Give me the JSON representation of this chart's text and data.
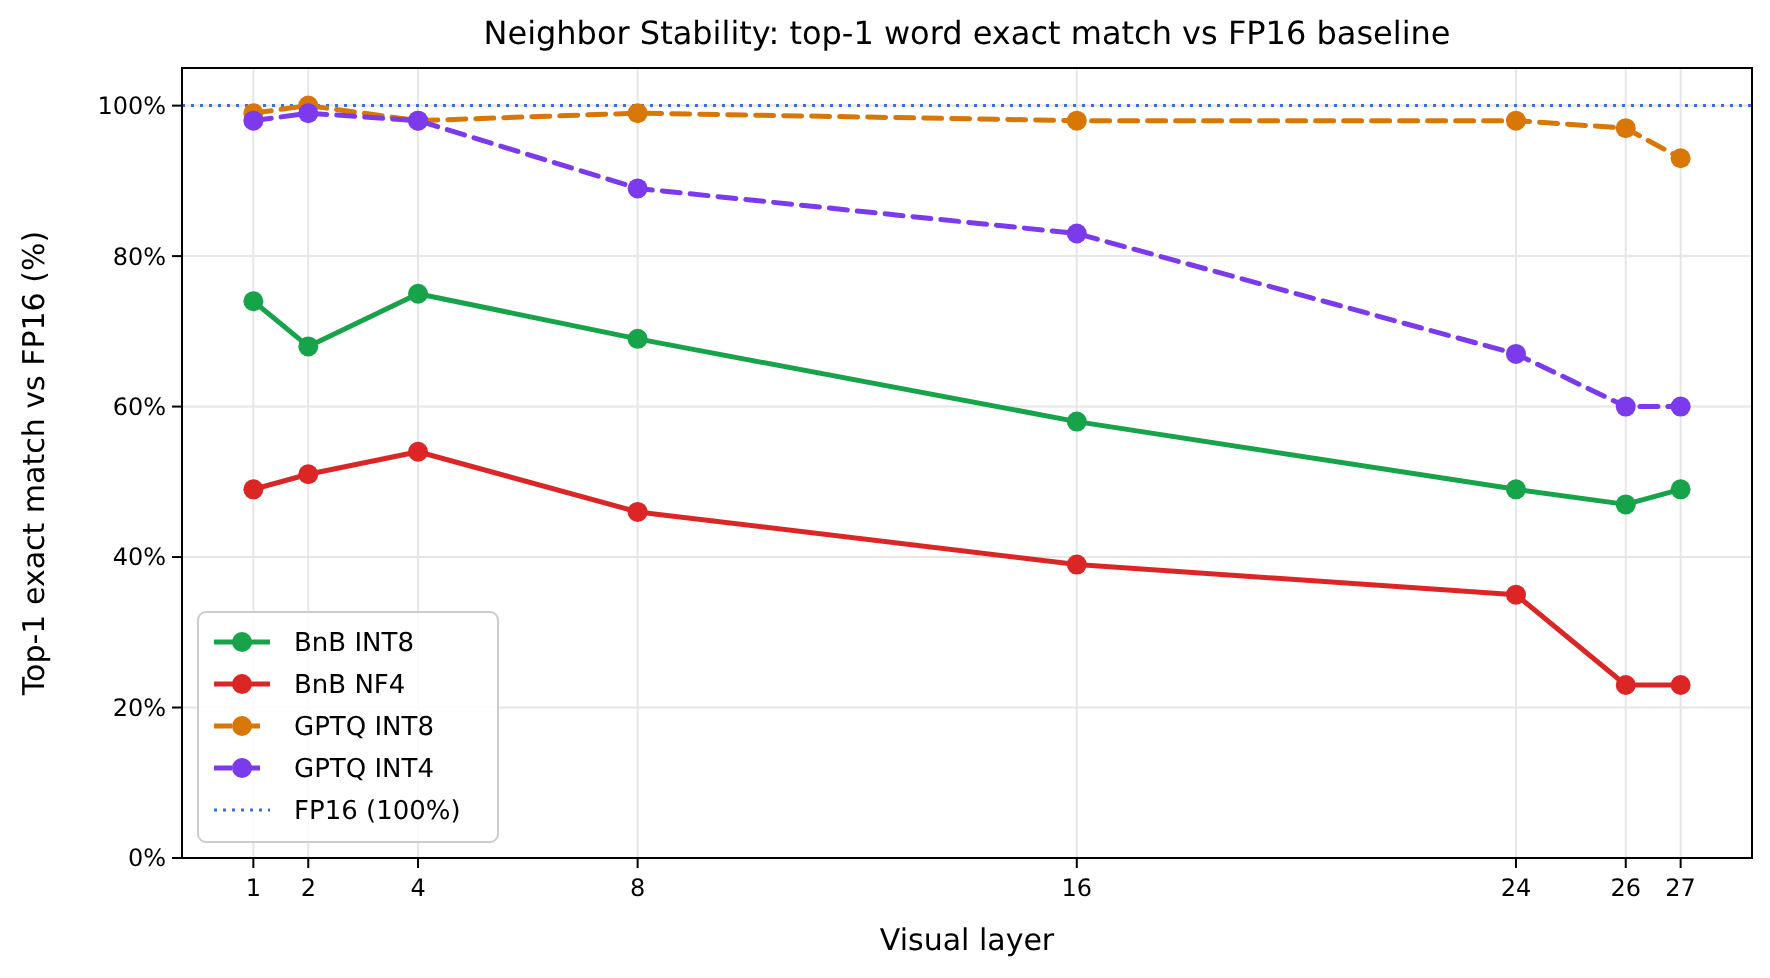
{
  "chart_data": {
    "type": "line",
    "title": "Neighbor Stability: top-1 word exact match vs FP16 baseline",
    "xlabel": "Visual layer",
    "ylabel": "Top-1 exact match vs FP16 (%)",
    "x": [
      1,
      2,
      4,
      8,
      16,
      24,
      26,
      27
    ],
    "series": [
      {
        "name": "BnB INT8",
        "color": "#16a34a",
        "line_style": "solid",
        "values": [
          74,
          68,
          75,
          69,
          58,
          49,
          47,
          49
        ]
      },
      {
        "name": "BnB NF4",
        "color": "#dc2626",
        "line_style": "solid",
        "values": [
          49,
          51,
          54,
          46,
          39,
          35,
          23,
          23
        ]
      },
      {
        "name": "GPTQ INT8",
        "color": "#d97706",
        "line_style": "dashed",
        "values": [
          99,
          100,
          98,
          99,
          98,
          98,
          97,
          93
        ]
      },
      {
        "name": "GPTQ INT4",
        "color": "#7c3aed",
        "line_style": "dashed",
        "values": [
          98,
          99,
          98,
          89,
          83,
          67,
          60,
          60
        ]
      }
    ],
    "ref_lines": [
      {
        "axis": "y",
        "value": 100,
        "label": "FP16 (100%)",
        "color": "#3b6fe0",
        "line_style": "dotted"
      }
    ],
    "xlim": [
      -0.3,
      28.3
    ],
    "xticks": [
      1,
      2,
      4,
      8,
      16,
      24,
      26,
      27
    ],
    "ylim": [
      0,
      105
    ],
    "yticks": [
      {
        "value": 0,
        "label": "0%"
      },
      {
        "value": 20,
        "label": "20%"
      },
      {
        "value": 40,
        "label": "40%"
      },
      {
        "value": 60,
        "label": "60%"
      },
      {
        "value": 80,
        "label": "80%"
      },
      {
        "value": 100,
        "label": "100%"
      }
    ],
    "grid": true,
    "legend": "bottom left",
    "marker": "circle"
  }
}
